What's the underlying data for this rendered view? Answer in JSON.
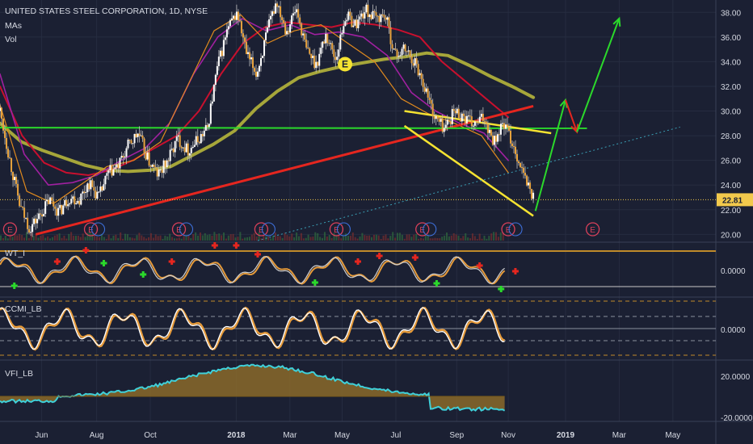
{
  "header": {
    "title": "UNITED STATES STEEL CORPORATION, 1D, NYSE",
    "indicator_1": "MAs",
    "indicator_2": "Vol"
  },
  "panes": {
    "wt_label": "WT_I",
    "ccmi_label": "CCMI_LB",
    "vfi_label": "VFI_LB"
  },
  "colors": {
    "background": "#1b2033",
    "grid": "#262c40",
    "price_line": "#f2c94c",
    "red_trend": "#e5261f",
    "green_line": "#2bd92b",
    "yellow_line": "#f5e331",
    "ma_thick": "#a6a63a",
    "ma_red": "#c8102e",
    "ma_purple": "#a020a0",
    "ma_orange": "#e08a1e"
  },
  "chart_data": [
    {
      "type": "line",
      "title": "UNITED STATES STEEL CORPORATION, 1D, NYSE",
      "ylim": [
        19.5,
        39
      ],
      "y_ticks": [
        "38.00",
        "36.00",
        "34.00",
        "32.00",
        "30.00",
        "28.00",
        "26.00",
        "24.00",
        "22.00",
        "20.00"
      ],
      "y_tick_values": [
        38,
        36,
        34,
        32,
        30,
        28,
        26,
        24,
        22,
        20
      ],
      "x_ticks": [
        "Jun",
        "Aug",
        "Oct",
        "2018",
        "Mar",
        "May",
        "Jul",
        "Sep",
        "Nov",
        "2019",
        "Mar",
        "May"
      ],
      "last_price_label": "22.81",
      "last_price": 22.81,
      "series": [
        {
          "role": "close",
          "values": [
            30.0,
            26.0,
            22.3,
            20.5,
            21.5,
            22.8,
            21.8,
            23.0,
            22.8,
            24.2,
            23.0,
            25.0,
            25.5,
            27.2,
            28.2,
            26.0,
            24.8,
            26.0,
            27.8,
            26.8,
            27.6,
            28.6,
            33.5,
            36.5,
            38.0,
            34.5,
            33.0,
            36.2,
            39.0,
            36.5,
            38.3,
            35.0,
            33.8,
            36.2,
            34.2,
            37.8,
            37.0,
            38.2,
            37.5,
            37.8,
            34.5,
            35.0,
            34.0,
            32.0,
            29.5,
            28.6,
            30.0,
            29.5,
            28.8,
            29.5,
            27.6,
            29.0,
            27.2,
            24.8,
            23.0
          ]
        },
        {
          "role": "ma-thick-olive",
          "values": [
            29.0,
            27.5,
            26.8,
            26.2,
            25.6,
            25.2,
            25.1,
            25.2,
            25.5,
            26.4,
            27.3,
            28.4,
            30.2,
            31.6,
            32.7,
            33.2,
            33.6,
            33.9,
            34.2,
            34.4,
            34.7,
            34.5,
            33.7,
            32.8,
            32.0,
            31.1
          ]
        },
        {
          "role": "ma-red",
          "values": [
            32.0,
            28.0,
            25.8,
            25.0,
            24.8,
            25.2,
            26.0,
            27.0,
            28.0,
            30.0,
            33.0,
            35.5,
            36.8,
            37.2,
            37.0,
            36.8,
            37.2,
            37.0,
            36.6,
            36.0,
            34.0,
            32.5,
            31.0,
            29.5
          ]
        },
        {
          "role": "ma-purple",
          "values": [
            33.0,
            26.5,
            24.0,
            24.2,
            24.8,
            26.0,
            27.0,
            29.0,
            33.0,
            36.0,
            37.5,
            36.5,
            37.0,
            36.2,
            36.4,
            36.0,
            34.5,
            31.5,
            30.0,
            29.0,
            28.2,
            26.0
          ]
        },
        {
          "role": "ma-orange",
          "values": [
            30.5,
            23.5,
            22.5,
            24.0,
            25.5,
            26.0,
            27.5,
            32.0,
            36.5,
            37.8,
            35.5,
            36.5,
            37.0,
            35.5,
            34.0,
            31.0,
            29.8,
            29.0,
            28.0,
            25.0
          ]
        }
      ],
      "trendlines": [
        {
          "role": "support-red",
          "from": [
            20.0,
            0.05
          ],
          "to": [
            30.4,
            0.745
          ]
        },
        {
          "role": "horizontal-green",
          "y": 28.65
        },
        {
          "role": "wedge-upper-yellow",
          "from": [
            30.0,
            0.565
          ],
          "to": [
            28.2,
            0.77
          ]
        },
        {
          "role": "wedge-lower-yellow",
          "from": [
            28.8,
            0.565
          ],
          "to": [
            21.5,
            0.745
          ]
        },
        {
          "role": "dotted-cyan",
          "from": [
            19.5,
            0.36
          ],
          "to": [
            28.7,
            0.95
          ]
        }
      ],
      "annotations": [
        "E",
        "E",
        "E",
        "E",
        "E",
        "E",
        "E",
        "E",
        "E",
        "?"
      ]
    },
    {
      "type": "line",
      "title": "WT_I",
      "y_ticks": [
        "0.0000"
      ],
      "y_tick_values": [
        0
      ]
    },
    {
      "type": "line",
      "title": "CCMI_LB",
      "y_ticks": [
        "0.0000"
      ],
      "y_tick_values": [
        0
      ]
    },
    {
      "type": "area",
      "title": "VFI_LB",
      "y_ticks": [
        "20.0000",
        "-20.0000"
      ],
      "y_tick_values": [
        20,
        -20
      ]
    }
  ]
}
